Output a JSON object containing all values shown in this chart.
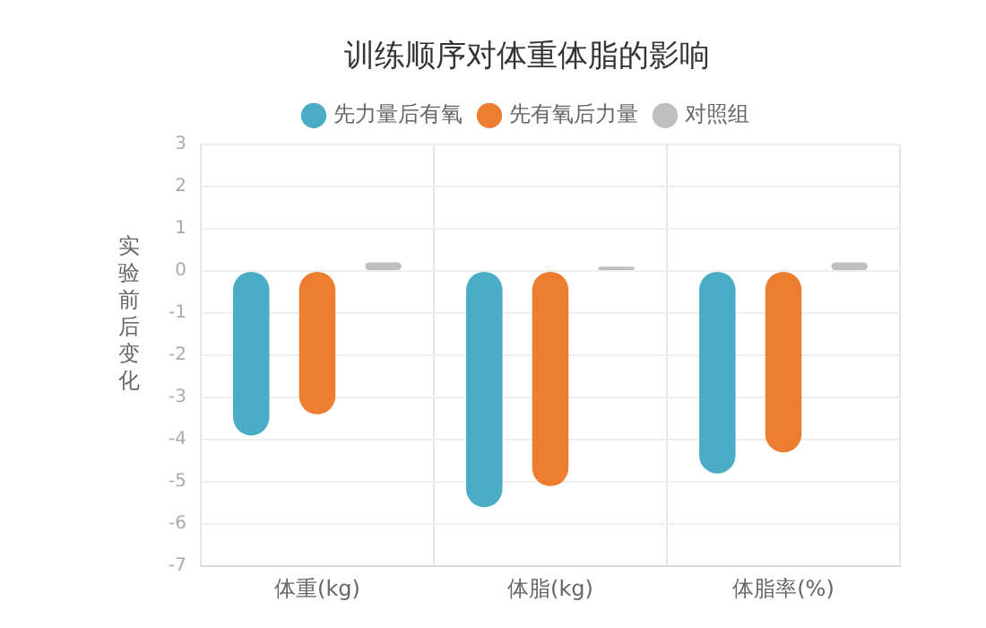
{
  "chart_data": {
    "type": "bar",
    "title": "训练顺序对体重体脂的影响",
    "ylabel": "实验前后变化",
    "categories": [
      "体重(kg)",
      "体脂(kg)",
      "体脂率(%)"
    ],
    "series": [
      {
        "name": "先力量后有氧",
        "color": "#4bacc6",
        "values": [
          -3.9,
          -5.6,
          -4.8
        ]
      },
      {
        "name": "先有氧后力量",
        "color": "#ed7d31",
        "values": [
          -3.4,
          -5.1,
          -4.3
        ]
      },
      {
        "name": "对照组",
        "color": "#bfbfbf",
        "values": [
          0.2,
          0.1,
          0.2
        ]
      }
    ],
    "ylim": [
      -7,
      3
    ],
    "yticks": [
      -7,
      -6,
      -5,
      -4,
      -3,
      -2,
      -1,
      0,
      1,
      2,
      3
    ],
    "grid": true,
    "legend": "top"
  }
}
